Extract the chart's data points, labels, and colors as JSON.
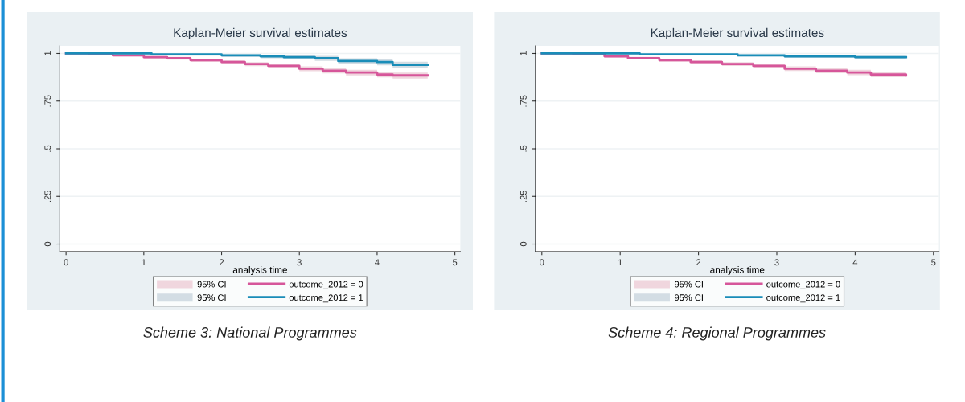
{
  "chart_data": [
    {
      "type": "step",
      "title": "Kaplan-Meier survival estimates",
      "xlabel": "analysis time",
      "xlim": [
        -0.08,
        5.07
      ],
      "ylim": [
        -0.04,
        1.04
      ],
      "xticks": [
        0,
        1,
        2,
        3,
        4,
        5
      ],
      "yticks": [
        0,
        {
          "value": 0.25,
          "label": ".25"
        },
        {
          "value": 0.5,
          "label": ".5"
        },
        {
          "value": 0.75,
          "label": ".75"
        },
        1
      ],
      "grid": "y",
      "legend": "bottom",
      "line_style": "solid",
      "marker": "none",
      "annotations": [
        "Scheme 3: National Programmes"
      ],
      "series": [
        {
          "type": "area",
          "name": "95% CI",
          "color": "#f0d6de"
        },
        {
          "type": "area",
          "name": "95% CI",
          "color": "#d3dde4"
        },
        {
          "name": "outcome_2012 = 0",
          "color": "#d6569a",
          "x": [
            0,
            0.3,
            0.6,
            1,
            1.3,
            1.6,
            2,
            2.3,
            2.6,
            3,
            3.3,
            3.6,
            4,
            4.2,
            4.65
          ],
          "values": [
            1,
            0.995,
            0.99,
            0.98,
            0.975,
            0.965,
            0.955,
            0.945,
            0.935,
            0.92,
            0.91,
            0.9,
            0.89,
            0.885,
            0.885
          ],
          "lower": [
            1,
            0.99,
            0.984,
            0.973,
            0.967,
            0.956,
            0.945,
            0.934,
            0.923,
            0.907,
            0.896,
            0.885,
            0.874,
            0.868,
            0.868
          ],
          "upper": [
            1,
            0.998,
            0.995,
            0.986,
            0.982,
            0.973,
            0.964,
            0.955,
            0.946,
            0.932,
            0.923,
            0.914,
            0.905,
            0.9,
            0.9
          ]
        },
        {
          "name": "outcome_2012 = 1",
          "color": "#1a8db8",
          "x": [
            0,
            1,
            1.1,
            2,
            2.5,
            2.8,
            3.2,
            3.5,
            4,
            4.2,
            4.65
          ],
          "values": [
            1,
            1,
            0.995,
            0.99,
            0.985,
            0.98,
            0.975,
            0.96,
            0.955,
            0.94,
            0.94
          ],
          "lower": [
            1,
            0.995,
            0.988,
            0.982,
            0.975,
            0.968,
            0.961,
            0.944,
            0.938,
            0.922,
            0.922
          ],
          "upper": [
            1,
            1,
            0.999,
            0.996,
            0.993,
            0.99,
            0.987,
            0.975,
            0.971,
            0.957,
            0.957
          ]
        }
      ]
    },
    {
      "type": "step",
      "title": "Kaplan-Meier survival estimates",
      "xlabel": "analysis time",
      "xlim": [
        -0.08,
        5.07
      ],
      "ylim": [
        -0.04,
        1.04
      ],
      "xticks": [
        0,
        1,
        2,
        3,
        4,
        5
      ],
      "yticks": [
        0,
        {
          "value": 0.25,
          "label": ".25"
        },
        {
          "value": 0.5,
          "label": ".5"
        },
        {
          "value": 0.75,
          "label": ".75"
        },
        1
      ],
      "grid": "y",
      "legend": "bottom",
      "line_style": "solid",
      "marker": "none",
      "annotations": [
        "Scheme 4: Regional Programmes"
      ],
      "series": [
        {
          "type": "area",
          "name": "95% CI",
          "color": "#f0d6de"
        },
        {
          "type": "area",
          "name": "95% CI",
          "color": "#d3dde4"
        },
        {
          "name": "outcome_2012 = 0",
          "color": "#d6569a",
          "x": [
            0,
            0.4,
            0.8,
            1.1,
            1.5,
            1.9,
            2.3,
            2.7,
            3.1,
            3.5,
            3.9,
            4.2,
            4.65
          ],
          "values": [
            1,
            0.995,
            0.985,
            0.975,
            0.965,
            0.955,
            0.945,
            0.935,
            0.92,
            0.91,
            0.9,
            0.89,
            0.885
          ],
          "lower": [
            1,
            0.991,
            0.979,
            0.968,
            0.957,
            0.946,
            0.935,
            0.924,
            0.908,
            0.897,
            0.886,
            0.875,
            0.87
          ],
          "upper": [
            1,
            0.998,
            0.99,
            0.982,
            0.973,
            0.964,
            0.955,
            0.946,
            0.932,
            0.923,
            0.914,
            0.905,
            0.9
          ]
        },
        {
          "name": "outcome_2012 = 1",
          "color": "#1a8db8",
          "x": [
            0,
            0.6,
            1.25,
            1.9,
            2.5,
            2.8,
            3.1,
            3.6,
            4,
            4.3,
            4.65
          ],
          "values": [
            1,
            1,
            0.995,
            0.995,
            0.99,
            0.99,
            0.985,
            0.985,
            0.98,
            0.98,
            0.98
          ],
          "lower": [
            1,
            0.995,
            0.99,
            0.99,
            0.984,
            0.984,
            0.978,
            0.978,
            0.972,
            0.972,
            0.972
          ],
          "upper": [
            1,
            1,
            0.998,
            0.998,
            0.995,
            0.995,
            0.991,
            0.991,
            0.987,
            0.987,
            0.987
          ]
        }
      ]
    }
  ]
}
